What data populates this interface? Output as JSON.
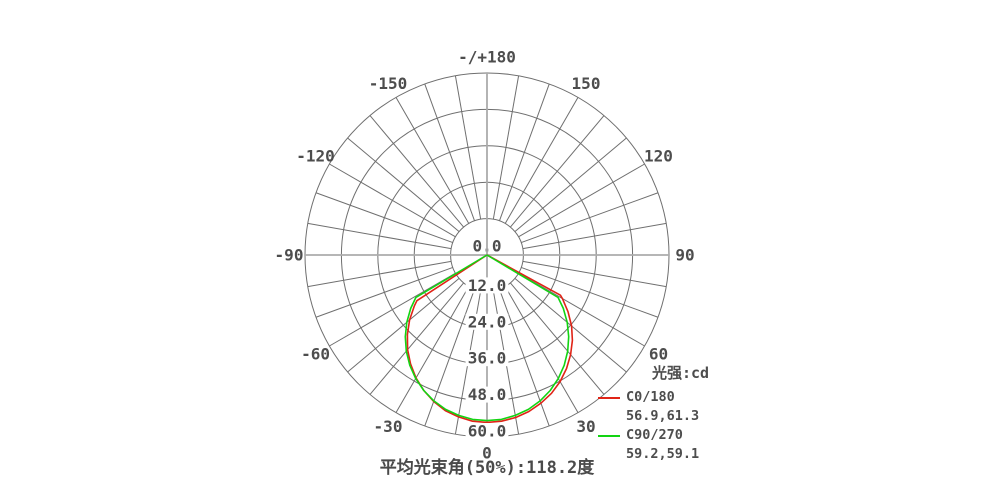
{
  "style": {
    "background": "#ffffff",
    "grid_color": "#6f6f6f",
    "axis_color": "#ababab",
    "text_color": "#4d4d4d",
    "halo_color": "#ffffff"
  },
  "chart_data": {
    "type": "line",
    "subtype": "polar-intensity-distribution",
    "unit_label": "光强:cd",
    "bottom_caption": "平均光束角(50%):118.2度",
    "beam_angle_50pct_deg": 118.2,
    "radial_max": 60,
    "angle_step_deg": 10,
    "radial_ticks": [
      {
        "value": 0,
        "label": "0.0"
      },
      {
        "value": 12,
        "label": "12.0"
      },
      {
        "value": 24,
        "label": "24.0"
      },
      {
        "value": 36,
        "label": "36.0"
      },
      {
        "value": 48,
        "label": "48.0"
      },
      {
        "value": 60,
        "label": "60.0"
      }
    ],
    "angle_ticks": [
      {
        "angle": 180,
        "label": "-/+180"
      },
      {
        "angle": -150,
        "label": "-150"
      },
      {
        "angle": 150,
        "label": "150"
      },
      {
        "angle": -120,
        "label": "-120"
      },
      {
        "angle": 120,
        "label": "120"
      },
      {
        "angle": -90,
        "label": "-90"
      },
      {
        "angle": 90,
        "label": "90"
      },
      {
        "angle": -60,
        "label": "-60"
      },
      {
        "angle": 60,
        "label": "60"
      },
      {
        "angle": -30,
        "label": "-30"
      },
      {
        "angle": 30,
        "label": "30"
      },
      {
        "angle": 0,
        "label": "0"
      }
    ],
    "series": [
      {
        "name": "C0/180",
        "color": "#e02417",
        "half_beam_angles": "56.9,61.3",
        "points": [
          [
            -90,
            0
          ],
          [
            -56.9,
            27.6
          ],
          [
            -55,
            29.2
          ],
          [
            -50,
            33.3
          ],
          [
            -45,
            37.1
          ],
          [
            -40,
            40.7
          ],
          [
            -35,
            43.9
          ],
          [
            -30,
            46.8
          ],
          [
            -25,
            49.3
          ],
          [
            -20,
            51.4
          ],
          [
            -15,
            53.1
          ],
          [
            -10,
            54.2
          ],
          [
            -5,
            55.0
          ],
          [
            0,
            55.2
          ],
          [
            5,
            55.0
          ],
          [
            10,
            54.4
          ],
          [
            15,
            53.4
          ],
          [
            20,
            52.0
          ],
          [
            25,
            50.3
          ],
          [
            30,
            48.2
          ],
          [
            35,
            45.7
          ],
          [
            40,
            42.9
          ],
          [
            45,
            39.8
          ],
          [
            50,
            36.4
          ],
          [
            55,
            32.6
          ],
          [
            60,
            28.7
          ],
          [
            61.3,
            27.6
          ],
          [
            90,
            0
          ]
        ]
      },
      {
        "name": "C90/270",
        "color": "#12d412",
        "half_beam_angles": "59.2,59.1",
        "points": [
          [
            -90,
            0
          ],
          [
            -59.2,
            27.3
          ],
          [
            -55,
            30.7
          ],
          [
            -50,
            34.5
          ],
          [
            -45,
            38.1
          ],
          [
            -40,
            41.4
          ],
          [
            -35,
            44.4
          ],
          [
            -30,
            47.0
          ],
          [
            -25,
            49.3
          ],
          [
            -20,
            51.2
          ],
          [
            -15,
            52.7
          ],
          [
            -10,
            53.7
          ],
          [
            -5,
            54.4
          ],
          [
            0,
            54.6
          ],
          [
            5,
            54.4
          ],
          [
            10,
            53.7
          ],
          [
            15,
            52.7
          ],
          [
            20,
            51.2
          ],
          [
            25,
            49.3
          ],
          [
            30,
            47.0
          ],
          [
            35,
            44.4
          ],
          [
            40,
            41.4
          ],
          [
            45,
            38.1
          ],
          [
            50,
            34.5
          ],
          [
            55,
            30.7
          ],
          [
            59.1,
            27.3
          ],
          [
            90,
            0
          ]
        ]
      }
    ]
  }
}
